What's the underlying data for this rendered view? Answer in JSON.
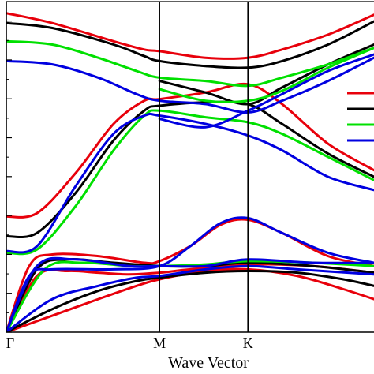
{
  "chart_data": {
    "type": "line",
    "title": "",
    "xlabel": "Wave Vector",
    "ylabel": "",
    "x_ticks": [
      {
        "label": "Γ",
        "x": 0.0
      },
      {
        "label": "M",
        "x": 1.0
      },
      {
        "label": "K",
        "x": 1.577
      }
    ],
    "xlim": [
      0.0,
      2.4
    ],
    "ylim": [
      0,
      1
    ],
    "grid": false,
    "legend": "right (partially visible, labels not shown)",
    "series": [
      {
        "color": "#e8000b",
        "bands": [
          [
            [
              0,
              0
            ],
            [
              0.3,
              0.05
            ],
            [
              0.6,
              0.1
            ],
            [
              0.85,
              0.14
            ],
            [
              1.0,
              0.16
            ],
            [
              1.3,
              0.185
            ],
            [
              1.577,
              0.19
            ],
            [
              1.9,
              0.17
            ],
            [
              2.2,
              0.13
            ],
            [
              2.4,
              0.1
            ]
          ],
          [
            [
              0,
              0
            ],
            [
              0.2,
              0.17
            ],
            [
              0.4,
              0.185
            ],
            [
              0.6,
              0.18
            ],
            [
              0.8,
              0.175
            ],
            [
              1.0,
              0.18
            ],
            [
              1.2,
              0.19
            ],
            [
              1.577,
              0.205
            ],
            [
              2.0,
              0.2
            ],
            [
              2.4,
              0.18
            ]
          ],
          [
            [
              0,
              0
            ],
            [
              0.15,
              0.2
            ],
            [
              0.3,
              0.235
            ],
            [
              0.6,
              0.23
            ],
            [
              0.9,
              0.21
            ],
            [
              1.0,
              0.215
            ],
            [
              1.2,
              0.26
            ],
            [
              1.4,
              0.325
            ],
            [
              1.577,
              0.34
            ],
            [
              1.8,
              0.3
            ],
            [
              2.1,
              0.23
            ],
            [
              2.4,
              0.2
            ]
          ],
          [
            [
              0,
              0.35
            ],
            [
              0.2,
              0.36
            ],
            [
              0.45,
              0.48
            ],
            [
              0.7,
              0.63
            ],
            [
              0.9,
              0.7
            ],
            [
              1.0,
              0.705
            ],
            [
              1.3,
              0.725
            ],
            [
              1.577,
              0.75
            ],
            [
              1.8,
              0.69
            ],
            [
              2.1,
              0.57
            ],
            [
              2.4,
              0.49
            ]
          ],
          [
            [
              0,
              0.965
            ],
            [
              0.3,
              0.935
            ],
            [
              0.7,
              0.88
            ],
            [
              0.9,
              0.855
            ],
            [
              1.0,
              0.85
            ],
            [
              1.3,
              0.83
            ],
            [
              1.577,
              0.83
            ],
            [
              1.8,
              0.855
            ],
            [
              2.1,
              0.9
            ],
            [
              2.4,
              0.96
            ]
          ]
        ]
      },
      {
        "color": "#000000",
        "bands": [
          [
            [
              0,
              0
            ],
            [
              0.3,
              0.07
            ],
            [
              0.6,
              0.125
            ],
            [
              0.85,
              0.155
            ],
            [
              1.0,
              0.165
            ],
            [
              1.3,
              0.18
            ],
            [
              1.577,
              0.185
            ],
            [
              1.9,
              0.18
            ],
            [
              2.2,
              0.16
            ],
            [
              2.4,
              0.14
            ]
          ],
          [
            [
              0,
              0
            ],
            [
              0.2,
              0.19
            ],
            [
              0.4,
              0.22
            ],
            [
              0.7,
              0.21
            ],
            [
              1.0,
              0.2
            ],
            [
              1.3,
              0.2
            ],
            [
              1.577,
              0.21
            ],
            [
              2.0,
              0.2
            ],
            [
              2.4,
              0.18
            ]
          ],
          [
            [
              0,
              0.29
            ],
            [
              0.2,
              0.3
            ],
            [
              0.45,
              0.42
            ],
            [
              0.7,
              0.58
            ],
            [
              0.9,
              0.67
            ],
            [
              1.0,
              0.685
            ],
            [
              1.3,
              0.695
            ],
            [
              1.577,
              0.69
            ],
            [
              1.8,
              0.63
            ],
            [
              2.1,
              0.54
            ],
            [
              2.4,
              0.47
            ]
          ],
          [
            [
              0,
              0.935
            ],
            [
              0.3,
              0.92
            ],
            [
              0.7,
              0.87
            ],
            [
              0.9,
              0.835
            ],
            [
              1.0,
              0.82
            ],
            [
              1.3,
              0.805
            ],
            [
              1.577,
              0.8
            ],
            [
              1.8,
              0.82
            ],
            [
              2.1,
              0.87
            ],
            [
              2.4,
              0.94
            ]
          ],
          [
            [
              1.0,
              0.76
            ],
            [
              1.3,
              0.725
            ],
            [
              1.577,
              0.69
            ],
            [
              1.8,
              0.74
            ],
            [
              2.1,
              0.81
            ],
            [
              2.4,
              0.87
            ]
          ]
        ]
      },
      {
        "color": "#00e000",
        "bands": [
          [
            [
              0,
              0
            ],
            [
              0.25,
              0.19
            ],
            [
              0.5,
              0.21
            ],
            [
              0.8,
              0.2
            ],
            [
              1.0,
              0.2
            ],
            [
              1.3,
              0.205
            ],
            [
              1.577,
              0.215
            ],
            [
              2.0,
              0.21
            ],
            [
              2.4,
              0.2
            ]
          ],
          [
            [
              0,
              0.24
            ],
            [
              0.2,
              0.25
            ],
            [
              0.45,
              0.38
            ],
            [
              0.7,
              0.55
            ],
            [
              0.9,
              0.655
            ],
            [
              1.0,
              0.67
            ],
            [
              1.3,
              0.65
            ],
            [
              1.577,
              0.635
            ],
            [
              1.8,
              0.6
            ],
            [
              2.1,
              0.53
            ],
            [
              2.4,
              0.46
            ]
          ],
          [
            [
              0,
              0.88
            ],
            [
              0.3,
              0.87
            ],
            [
              0.6,
              0.83
            ],
            [
              0.85,
              0.79
            ],
            [
              1.0,
              0.77
            ],
            [
              1.3,
              0.76
            ],
            [
              1.577,
              0.745
            ],
            [
              1.8,
              0.77
            ],
            [
              2.1,
              0.81
            ],
            [
              2.4,
              0.86
            ]
          ],
          [
            [
              1.0,
              0.735
            ],
            [
              1.3,
              0.7
            ],
            [
              1.577,
              0.7
            ],
            [
              1.8,
              0.73
            ],
            [
              2.1,
              0.8
            ],
            [
              2.4,
              0.86
            ]
          ]
        ]
      },
      {
        "color": "#0000e0",
        "bands": [
          [
            [
              0,
              0
            ],
            [
              0.3,
              0.1
            ],
            [
              0.6,
              0.14
            ],
            [
              0.85,
              0.165
            ],
            [
              1.0,
              0.17
            ],
            [
              1.3,
              0.19
            ],
            [
              1.577,
              0.2
            ],
            [
              1.9,
              0.19
            ],
            [
              2.4,
              0.175
            ]
          ],
          [
            [
              0,
              0
            ],
            [
              0.2,
              0.2
            ],
            [
              0.45,
              0.22
            ],
            [
              0.8,
              0.2
            ],
            [
              1.0,
              0.2
            ],
            [
              1.3,
              0.2
            ],
            [
              1.577,
              0.22
            ],
            [
              2.0,
              0.21
            ],
            [
              2.4,
              0.21
            ]
          ],
          [
            [
              0,
              0
            ],
            [
              0.15,
              0.17
            ],
            [
              0.3,
              0.19
            ],
            [
              0.7,
              0.19
            ],
            [
              1.0,
              0.2
            ],
            [
              1.2,
              0.26
            ],
            [
              1.4,
              0.33
            ],
            [
              1.577,
              0.345
            ],
            [
              1.8,
              0.3
            ],
            [
              2.1,
              0.24
            ],
            [
              2.4,
              0.21
            ]
          ],
          [
            [
              0,
              0.245
            ],
            [
              0.2,
              0.26
            ],
            [
              0.45,
              0.44
            ],
            [
              0.7,
              0.6
            ],
            [
              0.9,
              0.655
            ],
            [
              1.0,
              0.655
            ],
            [
              1.3,
              0.63
            ],
            [
              1.577,
              0.595
            ],
            [
              1.8,
              0.55
            ],
            [
              2.1,
              0.47
            ],
            [
              2.4,
              0.43
            ]
          ],
          [
            [
              0,
              0.82
            ],
            [
              0.3,
              0.81
            ],
            [
              0.6,
              0.77
            ],
            [
              0.85,
              0.72
            ],
            [
              1.0,
              0.7
            ],
            [
              1.3,
              0.69
            ],
            [
              1.577,
              0.665
            ],
            [
              1.8,
              0.7
            ],
            [
              2.1,
              0.76
            ],
            [
              2.4,
              0.83
            ]
          ],
          [
            [
              1.0,
              0.645
            ],
            [
              1.3,
              0.62
            ],
            [
              1.577,
              0.67
            ],
            [
              1.8,
              0.72
            ],
            [
              2.1,
              0.79
            ],
            [
              2.4,
              0.84
            ]
          ]
        ]
      }
    ]
  }
}
